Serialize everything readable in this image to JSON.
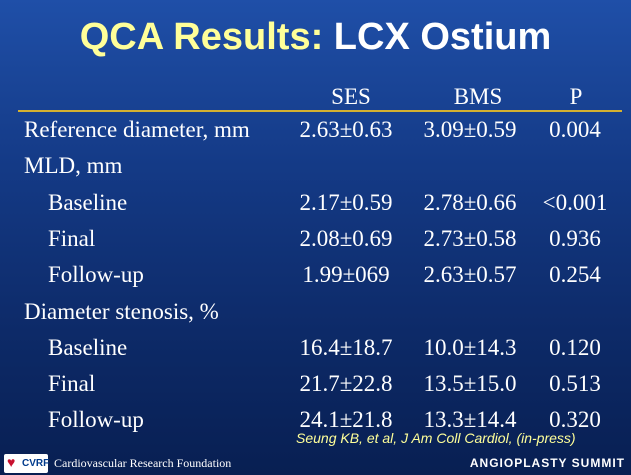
{
  "title": {
    "part1": "QCA Results:",
    "part2": "LCX Ostium"
  },
  "columns": [
    "SES",
    "BMS",
    "P"
  ],
  "rows": [
    {
      "label": "Reference diameter, mm",
      "indent": false,
      "ses": "2.63±0.63",
      "bms": "3.09±0.59",
      "p": "0.004"
    },
    {
      "label": "MLD, mm",
      "indent": false,
      "ses": "",
      "bms": "",
      "p": ""
    },
    {
      "label": "Baseline",
      "indent": true,
      "ses": "2.17±0.59",
      "bms": "2.78±0.66",
      "p": "<0.001"
    },
    {
      "label": "Final",
      "indent": true,
      "ses": "2.08±0.69",
      "bms": "2.73±0.58",
      "p": "0.936"
    },
    {
      "label": "Follow-up",
      "indent": true,
      "ses": "1.99±069",
      "bms": "2.63±0.57",
      "p": "0.254"
    },
    {
      "label": "Diameter stenosis, %",
      "indent": false,
      "ses": "",
      "bms": "",
      "p": ""
    },
    {
      "label": "Baseline",
      "indent": true,
      "ses": "16.4±18.7",
      "bms": "10.0±14.3",
      "p": "0.120"
    },
    {
      "label": "Final",
      "indent": true,
      "ses": "21.7±22.8",
      "bms": "13.5±15.0",
      "p": "0.513"
    },
    {
      "label": "Follow-up",
      "indent": true,
      "ses": "24.1±21.8",
      "bms": "13.3±14.4",
      "p": "0.320"
    }
  ],
  "citation": "Seung KB, et al, J Am Coll Cardiol, (in-press)",
  "footer": {
    "logo_text": "CVRF",
    "organization": "Cardiovascular Research Foundation",
    "summit": "ANGIOPLASTY SUMMIT"
  },
  "colors": {
    "title_accent": "#ffff99",
    "rule": "#d4b030",
    "background": "#143a86"
  }
}
